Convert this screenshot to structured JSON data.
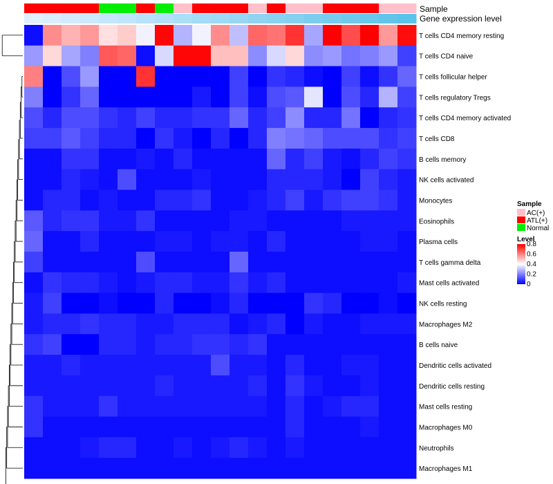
{
  "chart_data": {
    "type": "heatmap",
    "title": "",
    "annotations": [
      {
        "name": "Sample"
      },
      {
        "name": "Gene expression level"
      }
    ],
    "sample_groups": [
      "ATL(+)",
      "ATL(+)",
      "ATL(+)",
      "ATL(+)",
      "Normal",
      "Normal",
      "ATL(+)",
      "Normal",
      "AC(+)",
      "ATL(+)",
      "ATL(+)",
      "ATL(+)",
      "AC(+)",
      "ATL(+)",
      "AC(+)",
      "AC(+)",
      "ATL(+)",
      "ATL(+)",
      "ATL(+)",
      "AC(+)",
      "AC(+)"
    ],
    "gene_expression_level": [
      0.1,
      0.12,
      0.14,
      0.16,
      0.18,
      0.2,
      0.22,
      0.24,
      0.26,
      0.28,
      0.3,
      0.32,
      0.34,
      0.36,
      0.38,
      0.4,
      0.42,
      0.44,
      0.46,
      0.48,
      0.5
    ],
    "rows": [
      "T cells CD4 memory resting",
      "T cells CD4 naive",
      "T cells follicular helper",
      "T cells regulatory  Tregs",
      "T cells CD4 memory activated",
      "T cells CD8",
      "B cells memory",
      "NK cells activated",
      "Monocytes",
      "Eosinophils",
      "Plasma cells",
      "T cells gamma delta",
      "Mast cells activated",
      "NK cells resting",
      "Macrophages M2",
      "B cells naive",
      "Dendritic cells activated",
      "Dendritic cells resting",
      "Mast cells resting",
      "Macrophages M0",
      "Neutrophils",
      "Macrophages M1"
    ],
    "values": [
      [
        0.02,
        0.58,
        0.52,
        0.56,
        0.45,
        0.48,
        0.38,
        0.79,
        0.28,
        0.38,
        0.58,
        0.3,
        0.64,
        0.62,
        0.72,
        0.26,
        0.8,
        0.68,
        0.8,
        0.56,
        0.78
      ],
      [
        0.24,
        0.46,
        0.26,
        0.2,
        0.66,
        0.64,
        0.02,
        0.34,
        0.79,
        0.79,
        0.5,
        0.5,
        0.22,
        0.34,
        0.46,
        0.22,
        0.24,
        0.18,
        0.2,
        0.24,
        0.1
      ],
      [
        0.6,
        0.0,
        0.12,
        0.24,
        0.0,
        0.0,
        0.72,
        0.0,
        0.0,
        0.0,
        0.0,
        0.1,
        0.0,
        0.08,
        0.06,
        0.02,
        0.0,
        0.1,
        0.02,
        0.08,
        0.16
      ],
      [
        0.2,
        0.0,
        0.08,
        0.16,
        0.0,
        0.0,
        0.0,
        0.0,
        0.0,
        0.04,
        0.0,
        0.1,
        0.02,
        0.12,
        0.14,
        0.36,
        0.0,
        0.12,
        0.06,
        0.28,
        0.1
      ],
      [
        0.12,
        0.06,
        0.12,
        0.12,
        0.08,
        0.06,
        0.1,
        0.06,
        0.06,
        0.08,
        0.08,
        0.16,
        0.06,
        0.1,
        0.22,
        0.06,
        0.06,
        0.18,
        0.0,
        0.06,
        0.08
      ],
      [
        0.1,
        0.1,
        0.14,
        0.1,
        0.06,
        0.06,
        0.0,
        0.08,
        0.04,
        0.0,
        0.06,
        0.0,
        0.06,
        0.2,
        0.18,
        0.16,
        0.12,
        0.12,
        0.12,
        0.08,
        0.1
      ],
      [
        0.02,
        0.02,
        0.08,
        0.08,
        0.02,
        0.02,
        0.04,
        0.02,
        0.06,
        0.02,
        0.02,
        0.02,
        0.02,
        0.16,
        0.06,
        0.1,
        0.04,
        0.02,
        0.06,
        0.1,
        0.08
      ],
      [
        0.02,
        0.02,
        0.06,
        0.04,
        0.02,
        0.12,
        0.02,
        0.02,
        0.02,
        0.04,
        0.02,
        0.02,
        0.02,
        0.06,
        0.06,
        0.06,
        0.04,
        0.0,
        0.1,
        0.06,
        0.04
      ],
      [
        0.02,
        0.06,
        0.06,
        0.02,
        0.04,
        0.02,
        0.02,
        0.06,
        0.06,
        0.08,
        0.02,
        0.02,
        0.04,
        0.06,
        0.1,
        0.04,
        0.08,
        0.1,
        0.1,
        0.08,
        0.04
      ],
      [
        0.14,
        0.06,
        0.08,
        0.08,
        0.04,
        0.04,
        0.08,
        0.02,
        0.02,
        0.02,
        0.02,
        0.04,
        0.04,
        0.02,
        0.02,
        0.02,
        0.02,
        0.04,
        0.04,
        0.04,
        0.04
      ],
      [
        0.16,
        0.02,
        0.02,
        0.06,
        0.02,
        0.02,
        0.02,
        0.04,
        0.04,
        0.02,
        0.04,
        0.04,
        0.02,
        0.06,
        0.02,
        0.02,
        0.02,
        0.02,
        0.04,
        0.04,
        0.02
      ],
      [
        0.1,
        0.02,
        0.02,
        0.02,
        0.02,
        0.02,
        0.12,
        0.02,
        0.02,
        0.02,
        0.02,
        0.16,
        0.02,
        0.02,
        0.02,
        0.02,
        0.02,
        0.02,
        0.02,
        0.02,
        0.02
      ],
      [
        0.02,
        0.08,
        0.06,
        0.06,
        0.04,
        0.02,
        0.04,
        0.06,
        0.06,
        0.04,
        0.04,
        0.08,
        0.04,
        0.06,
        0.02,
        0.02,
        0.02,
        0.02,
        0.02,
        0.02,
        0.04
      ],
      [
        0.04,
        0.1,
        0.0,
        0.0,
        0.02,
        0.0,
        0.0,
        0.06,
        0.0,
        0.0,
        0.02,
        0.06,
        0.0,
        0.0,
        0.0,
        0.08,
        0.06,
        0.0,
        0.0,
        0.02,
        0.0
      ],
      [
        0.04,
        0.06,
        0.06,
        0.08,
        0.06,
        0.06,
        0.04,
        0.04,
        0.06,
        0.06,
        0.06,
        0.02,
        0.04,
        0.06,
        0.0,
        0.04,
        0.02,
        0.02,
        0.04,
        0.04,
        0.04
      ],
      [
        0.08,
        0.1,
        0.0,
        0.0,
        0.06,
        0.06,
        0.04,
        0.06,
        0.06,
        0.08,
        0.08,
        0.06,
        0.08,
        0.02,
        0.02,
        0.02,
        0.02,
        0.02,
        0.02,
        0.02,
        0.02
      ],
      [
        0.04,
        0.04,
        0.06,
        0.04,
        0.04,
        0.04,
        0.04,
        0.04,
        0.04,
        0.04,
        0.12,
        0.04,
        0.04,
        0.02,
        0.06,
        0.02,
        0.02,
        0.04,
        0.04,
        0.02,
        0.02
      ],
      [
        0.04,
        0.04,
        0.04,
        0.04,
        0.04,
        0.04,
        0.04,
        0.06,
        0.04,
        0.04,
        0.04,
        0.04,
        0.06,
        0.02,
        0.08,
        0.04,
        0.02,
        0.02,
        0.04,
        0.02,
        0.02
      ],
      [
        0.08,
        0.04,
        0.04,
        0.04,
        0.08,
        0.04,
        0.04,
        0.04,
        0.04,
        0.04,
        0.04,
        0.04,
        0.04,
        0.02,
        0.06,
        0.02,
        0.04,
        0.06,
        0.06,
        0.02,
        0.02
      ],
      [
        0.08,
        0.02,
        0.02,
        0.02,
        0.02,
        0.02,
        0.02,
        0.02,
        0.02,
        0.02,
        0.02,
        0.02,
        0.02,
        0.02,
        0.06,
        0.02,
        0.02,
        0.02,
        0.04,
        0.02,
        0.02
      ],
      [
        0.02,
        0.02,
        0.02,
        0.04,
        0.06,
        0.06,
        0.02,
        0.02,
        0.04,
        0.02,
        0.04,
        0.06,
        0.04,
        0.02,
        0.04,
        0.02,
        0.02,
        0.02,
        0.02,
        0.02,
        0.02
      ],
      [
        0.02,
        0.02,
        0.02,
        0.02,
        0.02,
        0.02,
        0.02,
        0.02,
        0.02,
        0.02,
        0.02,
        0.02,
        0.02,
        0.02,
        0.02,
        0.02,
        0.02,
        0.02,
        0.02,
        0.02,
        0.02
      ]
    ],
    "dendrogram_merges": [
      [
        -2,
        -3
      ],
      [
        -4,
        1
      ],
      [
        -5,
        2
      ],
      [
        -6,
        3
      ],
      [
        -7,
        4
      ],
      [
        -8,
        5
      ],
      [
        -9,
        6
      ],
      [
        -10,
        7
      ],
      [
        -11,
        8
      ],
      [
        -12,
        9
      ],
      [
        -13,
        10
      ],
      [
        -14,
        11
      ],
      [
        -15,
        12
      ],
      [
        -16,
        13
      ],
      [
        -17,
        14
      ],
      [
        -18,
        15
      ],
      [
        -19,
        16
      ],
      [
        -20,
        17
      ],
      [
        -21,
        18
      ],
      [
        -22,
        19
      ],
      [
        0,
        -1
      ]
    ],
    "legend": {
      "sample_title": "Sample",
      "sample_items": [
        {
          "label": "AC(+)",
          "color": "#ffc0cb"
        },
        {
          "label": "ATL(+)",
          "color": "#ff0000"
        },
        {
          "label": "Normal",
          "color": "#00ee00"
        }
      ],
      "level_title": "Level",
      "level_ticks": [
        "0.8",
        "0.6",
        "0.4",
        "0.2",
        "0"
      ],
      "level_range": [
        0,
        0.8
      ],
      "gradient_colors": [
        "#0000ff",
        "#ffffff",
        "#ff0000"
      ]
    },
    "expression_gradient_colors": [
      "#e0f0ff",
      "#5bc2ea"
    ],
    "annotation_colors": {
      "AC(+)": "#ffc0cb",
      "ATL(+)": "#ff0000",
      "Normal": "#00ee00"
    }
  }
}
